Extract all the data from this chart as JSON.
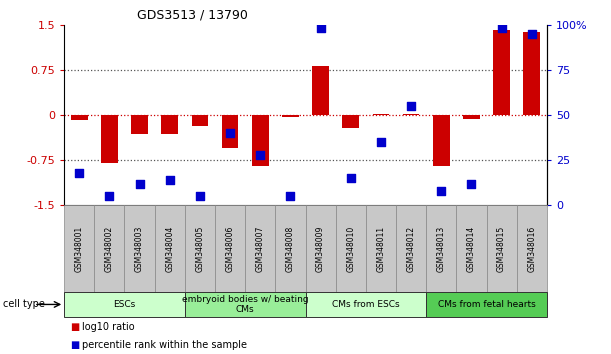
{
  "title": "GDS3513 / 13790",
  "samples": [
    "GSM348001",
    "GSM348002",
    "GSM348003",
    "GSM348004",
    "GSM348005",
    "GSM348006",
    "GSM348007",
    "GSM348008",
    "GSM348009",
    "GSM348010",
    "GSM348011",
    "GSM348012",
    "GSM348013",
    "GSM348014",
    "GSM348015",
    "GSM348016"
  ],
  "log10_ratio": [
    -0.08,
    -0.8,
    -0.32,
    -0.32,
    -0.18,
    -0.55,
    -0.85,
    -0.04,
    0.82,
    -0.22,
    0.02,
    0.02,
    -0.85,
    -0.06,
    1.42,
    1.38
  ],
  "percentile_rank": [
    18,
    5,
    12,
    14,
    5,
    40,
    28,
    5,
    98,
    15,
    35,
    55,
    8,
    12,
    98,
    95
  ],
  "ylim_left": [
    -1.5,
    1.5
  ],
  "ylim_right": [
    0,
    100
  ],
  "yticks_left": [
    -1.5,
    -0.75,
    0,
    0.75,
    1.5
  ],
  "ytick_labels_left": [
    "-1.5",
    "-0.75",
    "0",
    "0.75",
    "1.5"
  ],
  "yticks_right": [
    0,
    25,
    50,
    75,
    100
  ],
  "ytick_labels_right": [
    "0",
    "25",
    "50",
    "75",
    "100%"
  ],
  "cell_types": [
    {
      "label": "ESCs",
      "start": 0,
      "end": 3,
      "color": "#ccffcc"
    },
    {
      "label": "embryoid bodies w/ beating\nCMs",
      "start": 4,
      "end": 7,
      "color": "#99ee99"
    },
    {
      "label": "CMs from ESCs",
      "start": 8,
      "end": 11,
      "color": "#ccffcc"
    },
    {
      "label": "CMs from fetal hearts",
      "start": 12,
      "end": 15,
      "color": "#55cc55"
    }
  ],
  "bar_color": "#cc0000",
  "dot_color": "#0000cc",
  "bar_width": 0.55,
  "dot_size": 32,
  "left_tick_color": "#cc0000",
  "right_tick_color": "#0000cc",
  "zero_line_color": "#cc0000",
  "dotted_line_color": "#555555",
  "sample_box_color": "#c8c8c8",
  "sample_box_edge": "#888888"
}
